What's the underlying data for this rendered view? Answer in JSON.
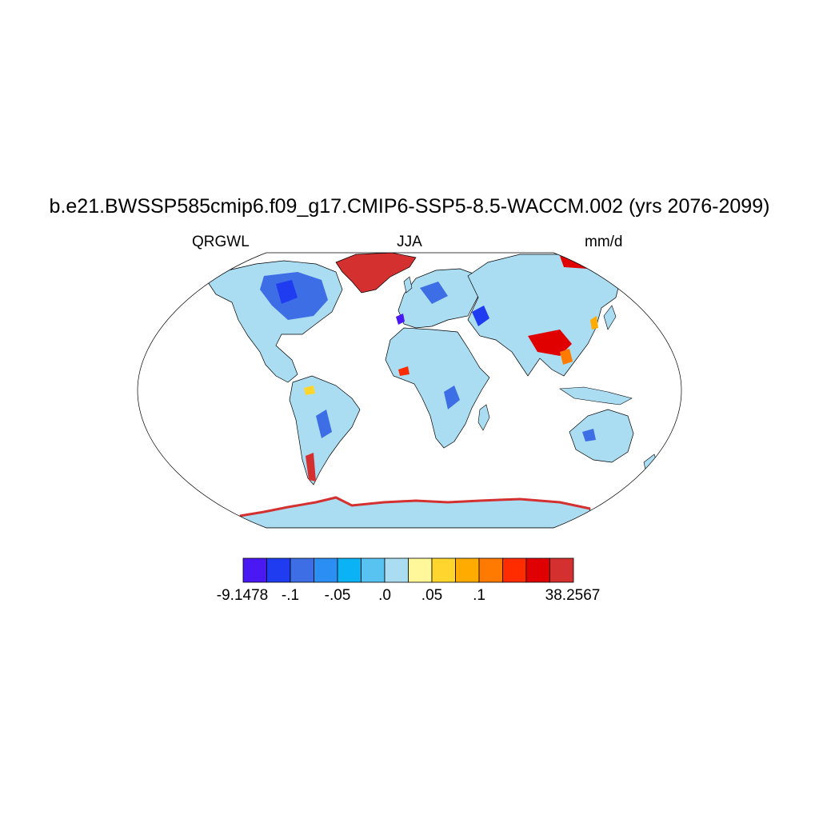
{
  "title": "b.e21.BWSSP585cmip6.f09_g17.CMIP6-SSP5-8.5-WACCM.002 (yrs 2076-2099)",
  "left_label": "QRGWL",
  "center_label": "JJA",
  "right_label": "mm/d",
  "projection": "Robinson",
  "colorbar": {
    "colors": [
      "#4a18f2",
      "#1f3cf0",
      "#3d6ee6",
      "#2b8ef2",
      "#0bb3f5",
      "#58c2f0",
      "#aadcf2",
      "#fff79a",
      "#ffd52e",
      "#ffab00",
      "#ff7a00",
      "#ff2c00",
      "#e00000",
      "#d43030"
    ],
    "labels": [
      "-9.1478",
      "-.1",
      "-.05",
      ".0",
      ".05",
      ".1",
      "38.2567"
    ]
  }
}
